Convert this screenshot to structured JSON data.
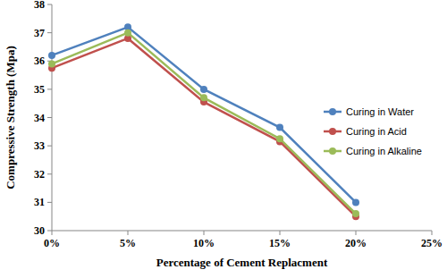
{
  "chart_data": {
    "type": "line",
    "x_label": "Percentage of Cement Replacment",
    "y_label": "Compressive Strength (Mpa)",
    "x": [
      0,
      5,
      10,
      15,
      20
    ],
    "xlim": [
      0,
      25
    ],
    "xticks": [
      {
        "value": 0,
        "label": "0%"
      },
      {
        "value": 5,
        "label": "5%"
      },
      {
        "value": 10,
        "label": "10%"
      },
      {
        "value": 15,
        "label": "15%"
      },
      {
        "value": 20,
        "label": "20%"
      },
      {
        "value": 25,
        "label": "25%"
      }
    ],
    "ylim": [
      30,
      38
    ],
    "yticks": [
      30,
      31,
      32,
      33,
      34,
      35,
      36,
      37,
      38
    ],
    "grid": false,
    "legend": "right",
    "series": [
      {
        "name": "Curing in Water",
        "color": "#4f81bd",
        "marker": "circle",
        "values": [
          36.2,
          37.2,
          35.0,
          33.65,
          31.0
        ]
      },
      {
        "name": "Curing in Acid",
        "color": "#c0504d",
        "marker": "circle",
        "values": [
          35.75,
          36.8,
          34.55,
          33.15,
          30.5
        ]
      },
      {
        "name": "Curing in Alkaline",
        "color": "#9bbb59",
        "marker": "circle",
        "values": [
          35.9,
          37.0,
          34.7,
          33.25,
          30.6
        ]
      }
    ]
  }
}
